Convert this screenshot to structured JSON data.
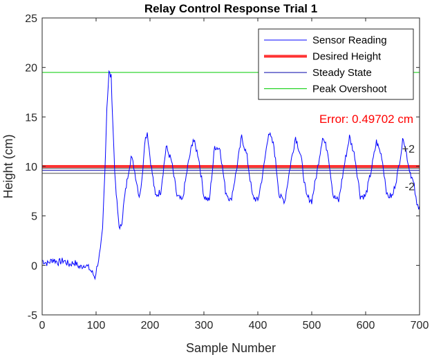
{
  "chart_data": {
    "type": "line",
    "title": "Relay Control Response Trial 1",
    "xlabel": "Sample Number",
    "ylabel": "Height (cm)",
    "xlim": [
      0,
      700
    ],
    "ylim": [
      -5,
      25
    ],
    "xticks": [
      0,
      100,
      200,
      300,
      400,
      500,
      600,
      700
    ],
    "yticks": [
      -5,
      0,
      5,
      10,
      15,
      20,
      25
    ],
    "grid": false,
    "legend_position": "top-right",
    "series": [
      {
        "name": "Sensor Reading",
        "color": "#0000ff",
        "x": [
          0,
          10,
          20,
          30,
          40,
          50,
          60,
          70,
          80,
          90,
          98,
          103,
          108,
          112,
          116,
          120,
          124,
          128,
          132,
          136,
          140,
          144,
          148,
          152,
          156,
          160,
          165,
          170,
          175,
          180,
          185,
          190,
          195,
          200,
          210,
          220,
          230,
          240,
          250,
          260,
          270,
          280,
          290,
          300,
          310,
          320,
          330,
          340,
          350,
          360,
          370,
          380,
          390,
          400,
          410,
          420,
          430,
          440,
          450,
          460,
          470,
          480,
          490,
          500,
          510,
          520,
          530,
          540,
          550,
          560,
          570,
          580,
          590,
          600,
          610,
          620,
          630,
          640,
          650,
          660,
          670,
          680,
          690,
          695,
          700
        ],
        "y": [
          0.5,
          0.2,
          0.6,
          0.3,
          0.5,
          0.1,
          0.3,
          -0.2,
          0.1,
          -0.5,
          -1.2,
          0.2,
          1.5,
          3.5,
          9,
          16,
          19.5,
          19,
          13,
          8,
          5.5,
          3.5,
          4.5,
          6.5,
          8,
          9.5,
          11,
          10,
          8.5,
          7,
          8.5,
          12.5,
          13.5,
          11,
          7,
          7.5,
          12,
          10.5,
          7,
          6.5,
          10,
          12.8,
          11,
          7,
          6.5,
          12,
          11.8,
          7.5,
          6.5,
          9.5,
          13,
          11,
          7,
          6.5,
          9.5,
          13.5,
          12,
          7,
          6.5,
          10,
          13,
          11,
          7,
          6.5,
          9.5,
          13,
          11.5,
          7,
          6.5,
          10,
          13,
          11,
          7,
          7,
          9.5,
          12.5,
          11,
          7,
          7,
          9.5,
          13,
          10,
          8,
          6,
          6
        ]
      },
      {
        "name": "Desired Height",
        "color": "#ff3333",
        "y": 10
      },
      {
        "name": "Steady State",
        "color": "#0000aa",
        "y": 9.6
      },
      {
        "name": "Peak Overshoot",
        "color": "#00cc00",
        "y": 19.5
      }
    ],
    "band_lines": {
      "color": "#444444",
      "values": [
        9.3,
        9.8
      ]
    },
    "band_labels": [
      "+2",
      "-2"
    ],
    "annotation": {
      "text": "Error: 0.49702 cm",
      "color": "#ff0000"
    }
  }
}
